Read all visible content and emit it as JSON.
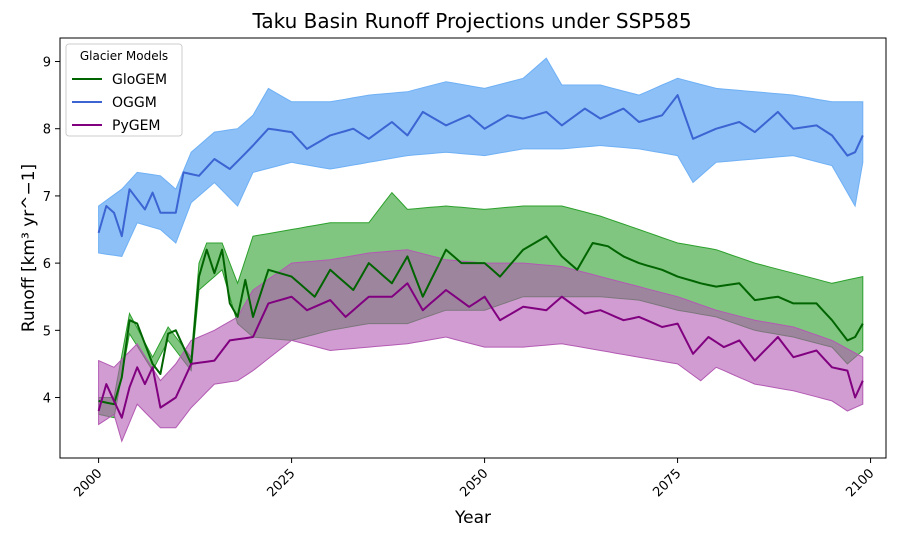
{
  "chart_data": {
    "type": "line",
    "title": "Taku Basin Runoff Projections under SSP585",
    "xlabel": "Year",
    "ylabel": "Runoff [km³ yr^−1]",
    "xlim": [
      1995,
      2102
    ],
    "ylim": [
      3.1,
      9.35
    ],
    "xticks": [
      2000,
      2025,
      2050,
      2075,
      2100
    ],
    "yticks": [
      4,
      5,
      6,
      7,
      8,
      9
    ],
    "grid": false,
    "legend": {
      "title": "Glacier Models",
      "position": "top-left"
    },
    "series": [
      {
        "name": "GloGEM",
        "color": "#006400",
        "fill_color": "#2ca02c",
        "x_start": 2000,
        "x_end": 2099,
        "anchors": [
          [
            2000,
            3.95
          ],
          [
            2002,
            3.9
          ],
          [
            2003,
            4.3
          ],
          [
            2004,
            5.15
          ],
          [
            2005,
            5.1
          ],
          [
            2007,
            4.5
          ],
          [
            2008,
            4.35
          ],
          [
            2009,
            4.95
          ],
          [
            2010,
            5.0
          ],
          [
            2012,
            4.5
          ],
          [
            2013,
            5.8
          ],
          [
            2014,
            6.2
          ],
          [
            2015,
            5.85
          ],
          [
            2016,
            6.2
          ],
          [
            2017,
            5.4
          ],
          [
            2018,
            5.2
          ],
          [
            2019,
            5.75
          ],
          [
            2020,
            5.2
          ],
          [
            2022,
            5.9
          ],
          [
            2025,
            5.8
          ],
          [
            2028,
            5.5
          ],
          [
            2030,
            5.9
          ],
          [
            2033,
            5.6
          ],
          [
            2035,
            6.0
          ],
          [
            2038,
            5.7
          ],
          [
            2040,
            6.1
          ],
          [
            2042,
            5.5
          ],
          [
            2045,
            6.2
          ],
          [
            2047,
            6.0
          ],
          [
            2050,
            6.0
          ],
          [
            2052,
            5.8
          ],
          [
            2055,
            6.2
          ],
          [
            2058,
            6.4
          ],
          [
            2060,
            6.1
          ],
          [
            2062,
            5.9
          ],
          [
            2064,
            6.3
          ],
          [
            2066,
            6.25
          ],
          [
            2068,
            6.1
          ],
          [
            2070,
            6.0
          ],
          [
            2073,
            5.9
          ],
          [
            2075,
            5.8
          ],
          [
            2078,
            5.7
          ],
          [
            2080,
            5.65
          ],
          [
            2083,
            5.7
          ],
          [
            2085,
            5.45
          ],
          [
            2088,
            5.5
          ],
          [
            2090,
            5.4
          ],
          [
            2093,
            5.4
          ],
          [
            2095,
            5.15
          ],
          [
            2097,
            4.85
          ],
          [
            2098,
            4.9
          ],
          [
            2099,
            5.1
          ]
        ],
        "band_lower": [
          [
            2000,
            3.75
          ],
          [
            2002,
            3.7
          ],
          [
            2004,
            4.95
          ],
          [
            2007,
            4.4
          ],
          [
            2009,
            4.85
          ],
          [
            2012,
            4.4
          ],
          [
            2013,
            5.6
          ],
          [
            2016,
            5.9
          ],
          [
            2018,
            5.1
          ],
          [
            2020,
            4.9
          ],
          [
            2025,
            4.85
          ],
          [
            2030,
            5.0
          ],
          [
            2035,
            5.1
          ],
          [
            2040,
            5.1
          ],
          [
            2045,
            5.3
          ],
          [
            2050,
            5.3
          ],
          [
            2055,
            5.5
          ],
          [
            2060,
            5.5
          ],
          [
            2065,
            5.5
          ],
          [
            2070,
            5.45
          ],
          [
            2075,
            5.3
          ],
          [
            2080,
            5.2
          ],
          [
            2085,
            5.0
          ],
          [
            2090,
            4.9
          ],
          [
            2095,
            4.75
          ],
          [
            2097,
            4.5
          ],
          [
            2099,
            4.7
          ]
        ],
        "band_upper": [
          [
            2000,
            4.0
          ],
          [
            2002,
            4.0
          ],
          [
            2004,
            5.25
          ],
          [
            2007,
            4.6
          ],
          [
            2009,
            5.05
          ],
          [
            2012,
            4.6
          ],
          [
            2013,
            6.0
          ],
          [
            2014,
            6.3
          ],
          [
            2016,
            6.3
          ],
          [
            2018,
            5.7
          ],
          [
            2020,
            6.4
          ],
          [
            2025,
            6.5
          ],
          [
            2030,
            6.6
          ],
          [
            2035,
            6.6
          ],
          [
            2038,
            7.05
          ],
          [
            2040,
            6.8
          ],
          [
            2045,
            6.85
          ],
          [
            2050,
            6.8
          ],
          [
            2055,
            6.85
          ],
          [
            2060,
            6.85
          ],
          [
            2065,
            6.7
          ],
          [
            2070,
            6.5
          ],
          [
            2075,
            6.3
          ],
          [
            2080,
            6.2
          ],
          [
            2085,
            6.0
          ],
          [
            2090,
            5.85
          ],
          [
            2095,
            5.7
          ],
          [
            2099,
            5.8
          ]
        ]
      },
      {
        "name": "OGGM",
        "color": "#3c64d2",
        "fill_color": "#6fb0f5",
        "x_start": 2000,
        "x_end": 2099,
        "anchors": [
          [
            2000,
            6.45
          ],
          [
            2001,
            6.85
          ],
          [
            2002,
            6.75
          ],
          [
            2003,
            6.4
          ],
          [
            2004,
            7.1
          ],
          [
            2005,
            6.95
          ],
          [
            2006,
            6.8
          ],
          [
            2007,
            7.05
          ],
          [
            2008,
            6.75
          ],
          [
            2010,
            6.75
          ],
          [
            2011,
            7.35
          ],
          [
            2013,
            7.3
          ],
          [
            2015,
            7.55
          ],
          [
            2017,
            7.4
          ],
          [
            2020,
            7.75
          ],
          [
            2022,
            8.0
          ],
          [
            2025,
            7.95
          ],
          [
            2027,
            7.7
          ],
          [
            2030,
            7.9
          ],
          [
            2033,
            8.0
          ],
          [
            2035,
            7.85
          ],
          [
            2038,
            8.1
          ],
          [
            2040,
            7.9
          ],
          [
            2042,
            8.25
          ],
          [
            2045,
            8.05
          ],
          [
            2048,
            8.2
          ],
          [
            2050,
            8.0
          ],
          [
            2053,
            8.2
          ],
          [
            2055,
            8.15
          ],
          [
            2058,
            8.25
          ],
          [
            2060,
            8.05
          ],
          [
            2063,
            8.3
          ],
          [
            2065,
            8.15
          ],
          [
            2068,
            8.3
          ],
          [
            2070,
            8.1
          ],
          [
            2073,
            8.2
          ],
          [
            2075,
            8.5
          ],
          [
            2077,
            7.85
          ],
          [
            2080,
            8.0
          ],
          [
            2083,
            8.1
          ],
          [
            2085,
            7.95
          ],
          [
            2088,
            8.25
          ],
          [
            2090,
            8.0
          ],
          [
            2093,
            8.05
          ],
          [
            2095,
            7.9
          ],
          [
            2097,
            7.6
          ],
          [
            2098,
            7.65
          ],
          [
            2099,
            7.9
          ]
        ],
        "band_lower": [
          [
            2000,
            6.15
          ],
          [
            2003,
            6.1
          ],
          [
            2005,
            6.6
          ],
          [
            2008,
            6.5
          ],
          [
            2010,
            6.3
          ],
          [
            2012,
            6.9
          ],
          [
            2015,
            7.2
          ],
          [
            2018,
            6.85
          ],
          [
            2020,
            7.35
          ],
          [
            2025,
            7.5
          ],
          [
            2030,
            7.4
          ],
          [
            2035,
            7.5
          ],
          [
            2040,
            7.6
          ],
          [
            2045,
            7.65
          ],
          [
            2050,
            7.6
          ],
          [
            2055,
            7.7
          ],
          [
            2060,
            7.7
          ],
          [
            2065,
            7.75
          ],
          [
            2070,
            7.7
          ],
          [
            2075,
            7.6
          ],
          [
            2077,
            7.2
          ],
          [
            2080,
            7.5
          ],
          [
            2085,
            7.55
          ],
          [
            2090,
            7.6
          ],
          [
            2095,
            7.45
          ],
          [
            2098,
            6.85
          ],
          [
            2099,
            7.5
          ]
        ],
        "band_upper": [
          [
            2000,
            6.85
          ],
          [
            2003,
            7.1
          ],
          [
            2005,
            7.35
          ],
          [
            2008,
            7.3
          ],
          [
            2010,
            7.1
          ],
          [
            2012,
            7.65
          ],
          [
            2015,
            7.95
          ],
          [
            2018,
            8.0
          ],
          [
            2020,
            8.2
          ],
          [
            2022,
            8.6
          ],
          [
            2025,
            8.4
          ],
          [
            2030,
            8.4
          ],
          [
            2035,
            8.5
          ],
          [
            2040,
            8.55
          ],
          [
            2045,
            8.7
          ],
          [
            2050,
            8.6
          ],
          [
            2055,
            8.75
          ],
          [
            2058,
            9.05
          ],
          [
            2060,
            8.65
          ],
          [
            2065,
            8.65
          ],
          [
            2070,
            8.5
          ],
          [
            2075,
            8.75
          ],
          [
            2080,
            8.6
          ],
          [
            2085,
            8.55
          ],
          [
            2090,
            8.5
          ],
          [
            2095,
            8.4
          ],
          [
            2099,
            8.4
          ]
        ]
      },
      {
        "name": "PyGEM",
        "color": "#800080",
        "fill_color": "#b35ab3",
        "x_start": 2000,
        "x_end": 2099,
        "anchors": [
          [
            2000,
            3.8
          ],
          [
            2001,
            4.2
          ],
          [
            2002,
            3.95
          ],
          [
            2003,
            3.7
          ],
          [
            2004,
            4.15
          ],
          [
            2005,
            4.45
          ],
          [
            2006,
            4.2
          ],
          [
            2007,
            4.45
          ],
          [
            2008,
            3.85
          ],
          [
            2010,
            4.0
          ],
          [
            2012,
            4.5
          ],
          [
            2015,
            4.55
          ],
          [
            2017,
            4.85
          ],
          [
            2020,
            4.9
          ],
          [
            2022,
            5.4
          ],
          [
            2025,
            5.5
          ],
          [
            2027,
            5.3
          ],
          [
            2030,
            5.45
          ],
          [
            2032,
            5.2
          ],
          [
            2035,
            5.5
          ],
          [
            2038,
            5.5
          ],
          [
            2040,
            5.7
          ],
          [
            2042,
            5.3
          ],
          [
            2045,
            5.6
          ],
          [
            2048,
            5.35
          ],
          [
            2050,
            5.5
          ],
          [
            2052,
            5.15
          ],
          [
            2055,
            5.35
          ],
          [
            2058,
            5.3
          ],
          [
            2060,
            5.5
          ],
          [
            2063,
            5.25
          ],
          [
            2065,
            5.3
          ],
          [
            2068,
            5.15
          ],
          [
            2070,
            5.2
          ],
          [
            2073,
            5.05
          ],
          [
            2075,
            5.1
          ],
          [
            2077,
            4.65
          ],
          [
            2079,
            4.9
          ],
          [
            2081,
            4.75
          ],
          [
            2083,
            4.85
          ],
          [
            2085,
            4.55
          ],
          [
            2088,
            4.9
          ],
          [
            2090,
            4.6
          ],
          [
            2093,
            4.7
          ],
          [
            2095,
            4.45
          ],
          [
            2097,
            4.4
          ],
          [
            2098,
            4.0
          ],
          [
            2099,
            4.25
          ]
        ],
        "band_lower": [
          [
            2000,
            3.6
          ],
          [
            2002,
            3.75
          ],
          [
            2003,
            3.35
          ],
          [
            2005,
            3.9
          ],
          [
            2008,
            3.55
          ],
          [
            2010,
            3.55
          ],
          [
            2012,
            3.85
          ],
          [
            2015,
            4.2
          ],
          [
            2018,
            4.25
          ],
          [
            2020,
            4.4
          ],
          [
            2025,
            4.85
          ],
          [
            2030,
            4.7
          ],
          [
            2035,
            4.75
          ],
          [
            2040,
            4.8
          ],
          [
            2045,
            4.9
          ],
          [
            2050,
            4.75
          ],
          [
            2055,
            4.75
          ],
          [
            2060,
            4.8
          ],
          [
            2065,
            4.7
          ],
          [
            2070,
            4.6
          ],
          [
            2075,
            4.5
          ],
          [
            2078,
            4.25
          ],
          [
            2080,
            4.45
          ],
          [
            2085,
            4.2
          ],
          [
            2090,
            4.1
          ],
          [
            2095,
            3.95
          ],
          [
            2097,
            3.8
          ],
          [
            2099,
            3.9
          ]
        ],
        "band_upper": [
          [
            2000,
            4.55
          ],
          [
            2002,
            4.45
          ],
          [
            2005,
            4.8
          ],
          [
            2008,
            4.25
          ],
          [
            2010,
            4.5
          ],
          [
            2012,
            4.85
          ],
          [
            2015,
            5.0
          ],
          [
            2018,
            5.2
          ],
          [
            2020,
            5.6
          ],
          [
            2025,
            6.0
          ],
          [
            2030,
            6.05
          ],
          [
            2035,
            6.15
          ],
          [
            2040,
            6.2
          ],
          [
            2045,
            6.05
          ],
          [
            2050,
            6.0
          ],
          [
            2055,
            6.0
          ],
          [
            2060,
            5.95
          ],
          [
            2065,
            5.8
          ],
          [
            2070,
            5.65
          ],
          [
            2075,
            5.5
          ],
          [
            2080,
            5.3
          ],
          [
            2085,
            5.15
          ],
          [
            2090,
            5.05
          ],
          [
            2095,
            4.85
          ],
          [
            2099,
            4.6
          ]
        ]
      }
    ]
  }
}
